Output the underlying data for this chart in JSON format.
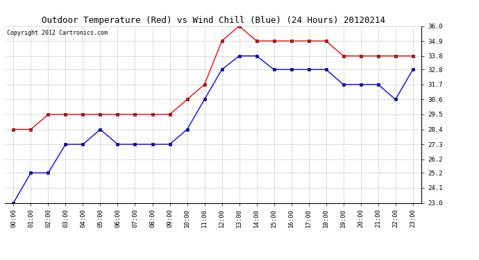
{
  "title": "Outdoor Temperature (Red) vs Wind Chill (Blue) (24 Hours) 20120214",
  "copyright": "Copyright 2012 Cartronics.com",
  "hours": [
    "00:00",
    "01:00",
    "02:00",
    "03:00",
    "04:00",
    "05:00",
    "06:00",
    "07:00",
    "08:00",
    "09:00",
    "10:00",
    "11:00",
    "12:00",
    "13:00",
    "14:00",
    "15:00",
    "16:00",
    "17:00",
    "18:00",
    "19:00",
    "20:00",
    "21:00",
    "22:00",
    "23:00"
  ],
  "red_temp": [
    28.4,
    28.4,
    29.5,
    29.5,
    29.5,
    29.5,
    29.5,
    29.5,
    29.5,
    29.5,
    30.6,
    31.7,
    34.9,
    36.0,
    34.9,
    34.9,
    34.9,
    34.9,
    34.9,
    33.8,
    33.8,
    33.8,
    33.8,
    33.8
  ],
  "blue_wc": [
    23.0,
    25.2,
    25.2,
    27.3,
    27.3,
    28.4,
    27.3,
    27.3,
    27.3,
    27.3,
    28.4,
    30.6,
    32.8,
    33.8,
    33.8,
    32.8,
    32.8,
    32.8,
    32.8,
    31.7,
    31.7,
    31.7,
    30.6,
    32.8
  ],
  "ylim_min": 23.0,
  "ylim_max": 36.0,
  "yticks": [
    23.0,
    24.1,
    25.2,
    26.2,
    27.3,
    28.4,
    29.5,
    30.6,
    31.7,
    32.8,
    33.8,
    34.9,
    36.0
  ],
  "red_color": "red",
  "blue_color": "blue",
  "bg_color": "#ffffff",
  "plot_bg": "#ffffff",
  "grid_color": "#bbbbbb",
  "title_fontsize": 9,
  "tick_fontsize": 6.5,
  "copyright_fontsize": 6
}
